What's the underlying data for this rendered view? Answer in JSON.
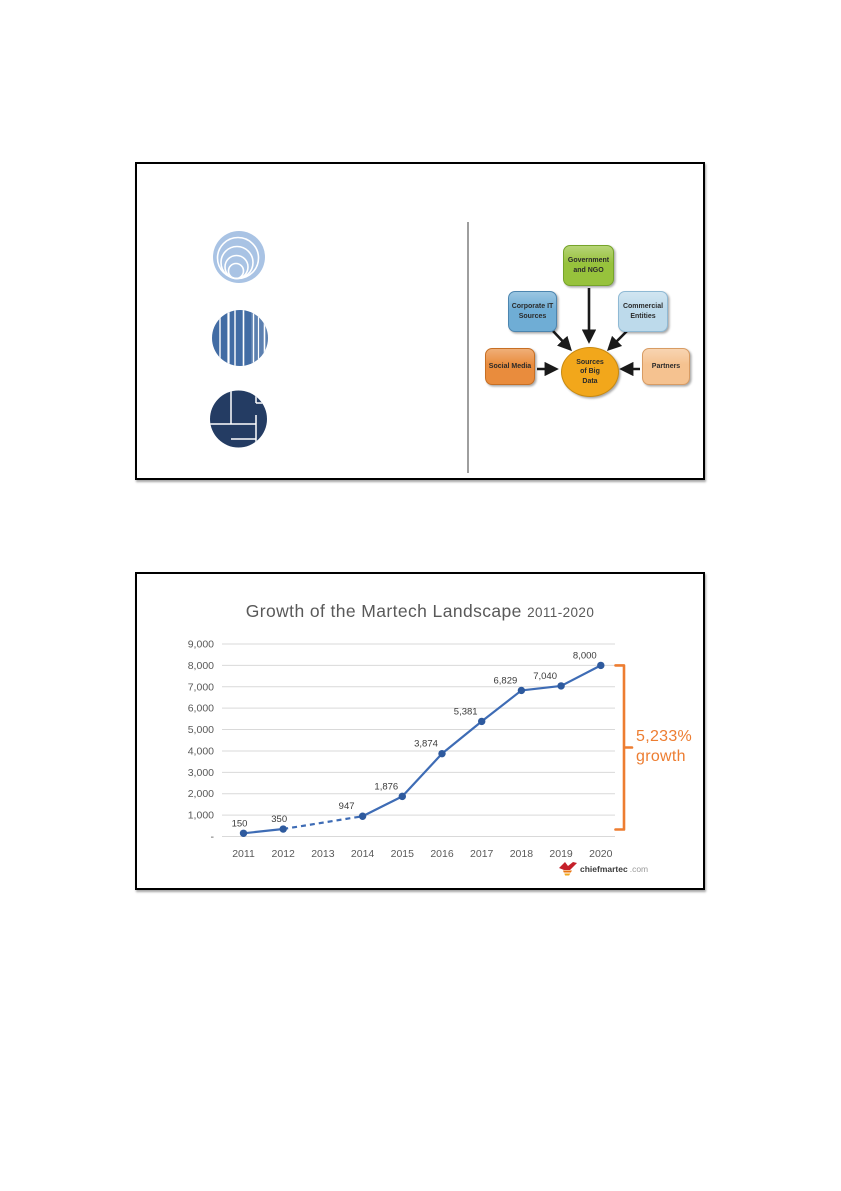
{
  "slide1": {
    "icons": [
      {
        "name": "concentric-circles-icon",
        "fill": "#A9C3E4"
      },
      {
        "name": "striped-circle-icon",
        "fill": "#426CA4"
      },
      {
        "name": "brick-circle-icon",
        "fill": "#243C63"
      }
    ],
    "divider_color": "#7f7f7f",
    "diagram": {
      "hub": {
        "label": "Sources of Big Data",
        "fill": "#F2A71B",
        "border": "#C98A10"
      },
      "nodes": [
        {
          "label": "Government and NGO",
          "fill": "#97C23C",
          "border": "#76A42A"
        },
        {
          "label": "Corporate IT Sources",
          "fill": "#6FADD5",
          "border": "#4C85AF"
        },
        {
          "label": "Commercial Entities",
          "fill": "#BDDAEB",
          "border": "#8FB9D4"
        },
        {
          "label": "Social Media",
          "fill": "#E98C3D",
          "border": "#C76F24"
        },
        {
          "label": "Partners",
          "fill": "#F5C290",
          "border": "#D89C64"
        }
      ],
      "arrow_color": "#1a1a1a"
    }
  },
  "chart_data": {
    "type": "line",
    "title_main": "Growth of the Martech Landscape",
    "title_suffix": "2011-2020",
    "title": "Growth of the Martech Landscape 2011-2020",
    "xlabel": "",
    "ylabel": "",
    "categories": [
      "2011",
      "2012",
      "2013",
      "2014",
      "2015",
      "2016",
      "2017",
      "2018",
      "2019",
      "2020"
    ],
    "values": [
      150,
      350,
      null,
      947,
      1876,
      3874,
      5381,
      6829,
      7040,
      8000
    ],
    "point_labels": [
      "150",
      "350",
      null,
      "947",
      "1,876",
      "3,874",
      "5,381",
      "6,829",
      "7,040",
      "8,000"
    ],
    "y_ticks": [
      "9,000",
      "8,000",
      "7,000",
      "6,000",
      "5,000",
      "4,000",
      "3,000",
      "2,000",
      "1,000",
      "-"
    ],
    "ylim": [
      0,
      9000
    ],
    "grid": true,
    "dashed_between": [
      "2012",
      "2014"
    ],
    "line_color": "#3E6CB5",
    "marker_color": "#2E5A9E",
    "grid_color": "#D9D9D9",
    "axis_color": "#595959",
    "label_color": "#3a3a3a",
    "annotation": {
      "line1": "5,233%",
      "line2": "growth",
      "color": "#ED7D31"
    },
    "watermark": {
      "brand": "chiefmartec",
      "suffix": ".com"
    }
  }
}
